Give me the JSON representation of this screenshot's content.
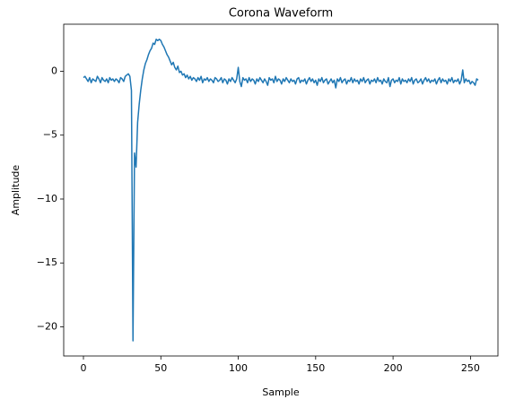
{
  "chart_data": {
    "type": "line",
    "title": "Corona Waveform",
    "xlabel": "Sample",
    "ylabel": "Amplitude",
    "color": "#1f77b4",
    "values": [
      -0.5,
      -0.4,
      -0.6,
      -0.8,
      -0.5,
      -0.9,
      -0.6,
      -0.7,
      -0.8,
      -0.4,
      -0.6,
      -0.9,
      -0.5,
      -0.7,
      -0.8,
      -0.6,
      -0.9,
      -0.5,
      -0.7,
      -0.6,
      -0.8,
      -0.6,
      -0.7,
      -0.9,
      -0.5,
      -0.6,
      -0.8,
      -0.4,
      -0.3,
      -0.2,
      -0.4,
      -1.5,
      -21.1,
      -6.4,
      -7.5,
      -4.0,
      -2.6,
      -1.5,
      -0.6,
      0.1,
      0.6,
      0.9,
      1.3,
      1.6,
      1.8,
      2.2,
      2.1,
      2.5,
      2.4,
      2.5,
      2.4,
      2.1,
      1.9,
      1.6,
      1.3,
      1.1,
      0.8,
      0.5,
      0.7,
      0.3,
      0.1,
      0.4,
      -0.1,
      0.0,
      -0.3,
      -0.2,
      -0.5,
      -0.3,
      -0.6,
      -0.4,
      -0.7,
      -0.5,
      -0.6,
      -0.8,
      -0.5,
      -0.7,
      -0.4,
      -0.9,
      -0.6,
      -0.7,
      -0.5,
      -0.8,
      -0.6,
      -0.7,
      -0.9,
      -0.5,
      -0.6,
      -0.8,
      -0.7,
      -0.5,
      -0.9,
      -0.6,
      -0.7,
      -1.0,
      -0.6,
      -0.8,
      -0.5,
      -0.7,
      -0.9,
      -0.6,
      0.3,
      -0.8,
      -1.2,
      -0.5,
      -0.7,
      -0.6,
      -0.9,
      -0.5,
      -0.8,
      -0.6,
      -0.7,
      -1.0,
      -0.6,
      -0.8,
      -0.5,
      -0.7,
      -0.9,
      -0.6,
      -0.8,
      -1.1,
      -0.5,
      -0.7,
      -0.6,
      -0.9,
      -0.4,
      -0.8,
      -0.6,
      -0.7,
      -1.0,
      -0.6,
      -0.8,
      -0.5,
      -0.7,
      -0.9,
      -0.6,
      -0.8,
      -0.7,
      -1.0,
      -0.6,
      -0.5,
      -0.9,
      -0.7,
      -0.8,
      -0.6,
      -1.0,
      -0.7,
      -0.5,
      -0.8,
      -0.6,
      -0.9,
      -0.7,
      -1.1,
      -0.6,
      -0.8,
      -0.5,
      -0.9,
      -0.7,
      -0.6,
      -1.0,
      -0.8,
      -0.6,
      -0.9,
      -0.7,
      -1.3,
      -0.6,
      -0.8,
      -0.5,
      -0.9,
      -0.7,
      -0.6,
      -1.0,
      -0.7,
      -0.8,
      -0.5,
      -0.9,
      -0.6,
      -0.8,
      -0.7,
      -1.0,
      -0.6,
      -0.8,
      -0.5,
      -0.9,
      -0.7,
      -0.6,
      -1.0,
      -0.7,
      -0.8,
      -0.6,
      -0.9,
      -0.5,
      -0.8,
      -0.7,
      -1.0,
      -0.6,
      -0.8,
      -0.9,
      -0.5,
      -1.2,
      -0.7,
      -0.6,
      -0.9,
      -0.7,
      -0.8,
      -0.5,
      -1.0,
      -0.6,
      -0.8,
      -0.7,
      -0.9,
      -0.6,
      -0.8,
      -0.5,
      -1.0,
      -0.7,
      -0.6,
      -0.9,
      -0.8,
      -0.6,
      -1.0,
      -0.7,
      -0.5,
      -0.8,
      -0.6,
      -0.9,
      -0.7,
      -0.8,
      -0.6,
      -1.0,
      -0.7,
      -0.5,
      -0.9,
      -0.6,
      -0.8,
      -0.7,
      -1.0,
      -0.6,
      -0.8,
      -0.5,
      -0.9,
      -0.7,
      -0.8,
      -0.6,
      -1.0,
      -0.7,
      0.1,
      -0.9,
      -0.6,
      -0.8,
      -0.7,
      -1.0,
      -0.8,
      -0.9,
      -1.1,
      -0.6,
      -0.7
    ],
    "xlim": [
      -12.75,
      267.75
    ],
    "xticks": [
      0,
      50,
      100,
      150,
      200,
      250
    ],
    "ylim": [
      -22.28,
      3.68
    ],
    "yticks": [
      {
        "value": -20,
        "label": "−20"
      },
      {
        "value": -15,
        "label": "−15"
      },
      {
        "value": -10,
        "label": "−10"
      },
      {
        "value": -5,
        "label": "−5"
      },
      0
    ],
    "grid": false
  }
}
